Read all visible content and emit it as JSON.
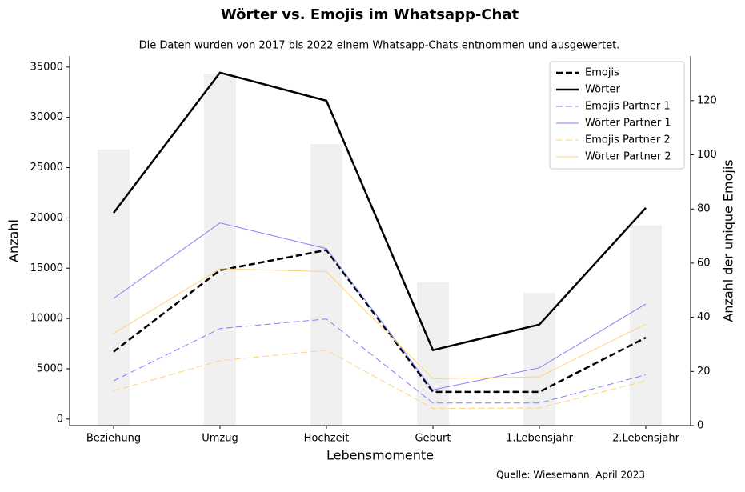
{
  "chart_data": {
    "type": "line",
    "title": "Wörter vs. Emojis im Whatsapp-Chat",
    "subtitle": "Die Daten wurden von 2017 bis 2022 einem Whatsapp-Chats entnommen und ausgewertet.",
    "xlabel": "Lebensmomente",
    "ylabel": "Anzahl",
    "y2label": "Anzahl der unique Emojis",
    "source": "Quelle: Wiesemann, April 2023",
    "categories": [
      "Beziehung",
      "Umzug",
      "Hochzeit",
      "Geburt",
      "1.Lebensjahr",
      "2.Lebensjahr"
    ],
    "ylim": [
      -650,
      36100
    ],
    "yticks": [
      0,
      5000,
      10000,
      15000,
      20000,
      25000,
      30000,
      35000
    ],
    "y2lim": [
      0,
      136.5
    ],
    "y2ticks": [
      0,
      20,
      40,
      60,
      80,
      100,
      120
    ],
    "legend": "upper right",
    "series": [
      {
        "type": "bar",
        "axis": "y2",
        "color": "#f0f0f0",
        "values": [
          102,
          130,
          104,
          53,
          49,
          74
        ]
      },
      {
        "name": "Emojis",
        "color": "#000000",
        "dash": "dashed",
        "width": 2.5,
        "values": [
          6700,
          14800,
          16800,
          2700,
          2700,
          8100
        ]
      },
      {
        "name": "Wörter",
        "color": "#000000",
        "dash": "solid",
        "width": 2.5,
        "values": [
          20500,
          34450,
          31650,
          6850,
          9400,
          21000
        ]
      },
      {
        "name": "Emojis Partner 1",
        "color": "#7f7fff",
        "dash": "dashed",
        "width": 1,
        "values": [
          3800,
          9000,
          9950,
          1600,
          1600,
          4400
        ]
      },
      {
        "name": "Wörter Partner 1",
        "color": "#7f7fff",
        "dash": "solid",
        "width": 1,
        "values": [
          12000,
          19500,
          16950,
          2900,
          5100,
          11450
        ]
      },
      {
        "name": "Emojis Partner 2",
        "color": "#ffd27f",
        "dash": "dashed",
        "width": 1,
        "values": [
          2800,
          5800,
          6850,
          1050,
          1100,
          3800
        ]
      },
      {
        "name": "Wörter Partner 2",
        "color": "#ffd27f",
        "dash": "solid",
        "width": 1,
        "values": [
          8500,
          14950,
          14650,
          4000,
          4200,
          9450
        ]
      }
    ]
  }
}
